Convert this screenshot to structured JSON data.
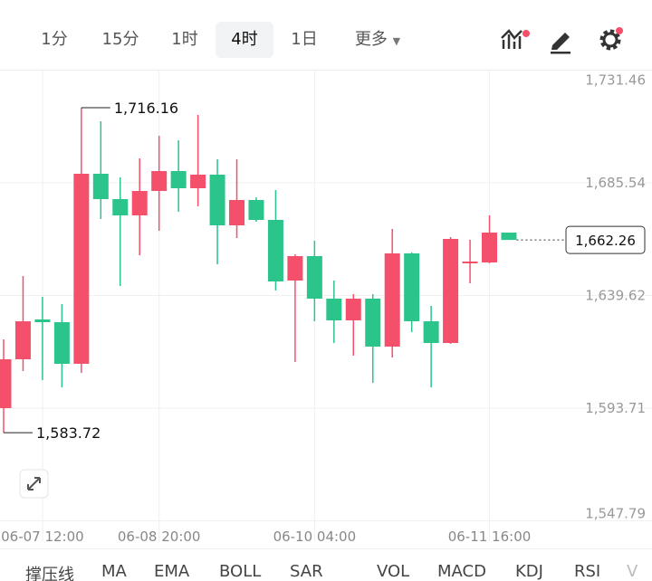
{
  "toolbar": {
    "intervals": [
      "1分",
      "15分",
      "1时",
      "4时",
      "1日"
    ],
    "active_index": 3,
    "more": "更多"
  },
  "chart_data": {
    "type": "candlestick",
    "categories": [
      null,
      null,
      "06-07 12:00",
      null,
      null,
      null,
      null,
      null,
      "06-08 20:00",
      null,
      null,
      null,
      null,
      null,
      null,
      null,
      "06-10 04:00",
      null,
      null,
      null,
      null,
      null,
      null,
      null,
      null,
      "06-11 16:00",
      null
    ],
    "open": [
      1593.71,
      1613.62,
      1629.85,
      1628.75,
      1611.78,
      1689.23,
      1678.9,
      1672.26,
      1682.22,
      1690.33,
      1683.33,
      1688.86,
      1668.21,
      1678.53,
      1670.42,
      1645.71,
      1655.67,
      1638.33,
      1629.48,
      1638.33,
      1618.79,
      1656.77,
      1629.11,
      1620.26,
      1652.72,
      1653.09,
      1665.26
    ],
    "high": [
      1621.74,
      1647.55,
      1639.07,
      1636.12,
      1716.16,
      1710.62,
      1687.75,
      1695.5,
      1704.72,
      1702.87,
      1713.2,
      1695.13,
      1695.13,
      1679.64,
      1682.59,
      1656.41,
      1661.94,
      1645.71,
      1640.18,
      1640.18,
      1666.73,
      1657.14,
      1635.38,
      1663.41,
      1662.31,
      1672.26,
      1665.26
    ],
    "low": [
      1583.72,
      1608.83,
      1605.14,
      1602.19,
      1608.09,
      1670.79,
      1643.5,
      1656.04,
      1665.99,
      1673.74,
      1675.95,
      1652.35,
      1663.04,
      1669.68,
      1641.65,
      1612.52,
      1629.11,
      1620.26,
      1615.1,
      1604.04,
      1614.36,
      1624.69,
      1602.19,
      1619.89,
      1644.6,
      1652.72,
      1662.26
    ],
    "close": [
      1613.62,
      1629.11,
      1628.75,
      1611.78,
      1689.23,
      1678.9,
      1672.26,
      1682.22,
      1690.33,
      1683.33,
      1688.86,
      1668.21,
      1678.53,
      1670.42,
      1645.34,
      1655.67,
      1638.33,
      1629.48,
      1638.33,
      1618.79,
      1656.77,
      1629.11,
      1620.26,
      1662.67,
      1653.45,
      1665.26,
      1662.26
    ],
    "up_color": "#f4506b",
    "down_color": "#2bc48a",
    "ylim": [
      1547.79,
      1731.46
    ],
    "yticks": [
      {
        "value": 1547.79,
        "label": "1,547.79"
      },
      {
        "value": 1593.71,
        "label": "1,593.71"
      },
      {
        "value": 1639.62,
        "label": "1,639.62"
      },
      {
        "value": 1685.54,
        "label": "1,685.54"
      },
      {
        "value": 1731.46,
        "label": "1,731.46"
      }
    ],
    "grid": true,
    "annotations": [
      {
        "value": 1716.16,
        "label": "1,716.16"
      },
      {
        "value": 1583.72,
        "label": "1,583.72"
      }
    ],
    "last_price": {
      "value": 1662.26,
      "label": "1,662.26"
    }
  },
  "indicators": [
    "撑压线",
    "MA",
    "EMA",
    "BOLL",
    "SAR",
    "VOL",
    "MACD",
    "KDJ",
    "RSI",
    "V"
  ]
}
